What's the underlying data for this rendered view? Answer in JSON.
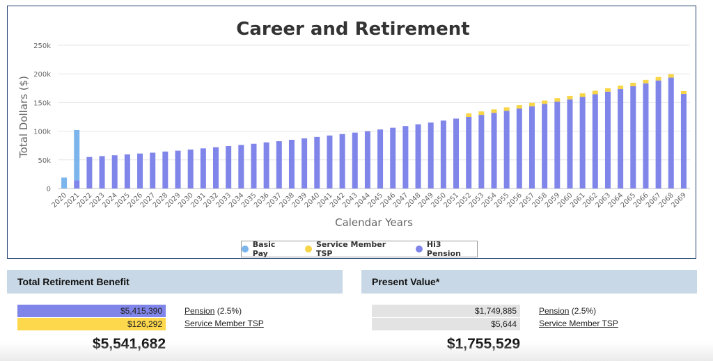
{
  "chart_data": {
    "type": "bar",
    "stacked": true,
    "title": "Career and Retirement",
    "xlabel": "Calendar Years",
    "ylabel": "Total Dollars ($)",
    "ylim": [
      0,
      250000
    ],
    "yticks": [
      "0",
      "50k",
      "100k",
      "150k",
      "200k",
      "250k"
    ],
    "grid": true,
    "legend_position": "bottom-center",
    "categories": [
      "2020",
      "2021",
      "2022",
      "2023",
      "2024",
      "2025",
      "2026",
      "2027",
      "2028",
      "2029",
      "2030",
      "2031",
      "2032",
      "2033",
      "2034",
      "2035",
      "2036",
      "2037",
      "2038",
      "2039",
      "2040",
      "2041",
      "2042",
      "2043",
      "2044",
      "2045",
      "2046",
      "2047",
      "2048",
      "2049",
      "2050",
      "2051",
      "2052",
      "2053",
      "2054",
      "2055",
      "2056",
      "2057",
      "2058",
      "2059",
      "2060",
      "2061",
      "2062",
      "2063",
      "2064",
      "2065",
      "2066",
      "2067",
      "2068",
      "2069"
    ],
    "series": [
      {
        "name": "Basic Pay",
        "color": "#7cb5ec",
        "values": [
          19000,
          88000,
          0,
          0,
          0,
          0,
          0,
          0,
          0,
          0,
          0,
          0,
          0,
          0,
          0,
          0,
          0,
          0,
          0,
          0,
          0,
          0,
          0,
          0,
          0,
          0,
          0,
          0,
          0,
          0,
          0,
          0,
          0,
          0,
          0,
          0,
          0,
          0,
          0,
          0,
          0,
          0,
          0,
          0,
          0,
          0,
          0,
          0,
          0,
          0
        ]
      },
      {
        "name": "Hi3 Pension",
        "color": "#8085e9",
        "values": [
          0,
          14000,
          55000,
          56500,
          58000,
          59500,
          61000,
          62500,
          64500,
          66000,
          68000,
          70000,
          72000,
          74000,
          76000,
          78000,
          80500,
          82500,
          85000,
          87500,
          90000,
          92500,
          95000,
          97500,
          100000,
          103000,
          106000,
          109000,
          112000,
          115000,
          118500,
          122000,
          125000,
          128500,
          132000,
          135500,
          139500,
          143500,
          147500,
          151500,
          155500,
          160000,
          164500,
          169000,
          173500,
          178500,
          183500,
          188500,
          193500,
          165000
        ]
      },
      {
        "name": "Service Member TSP",
        "color": "#f7d547",
        "values": [
          0,
          0,
          0,
          0,
          0,
          0,
          0,
          0,
          0,
          0,
          0,
          0,
          0,
          0,
          0,
          0,
          0,
          0,
          0,
          0,
          0,
          0,
          0,
          0,
          0,
          0,
          0,
          0,
          0,
          0,
          0,
          0,
          6000,
          6000,
          6000,
          6000,
          6000,
          6000,
          6000,
          6000,
          6000,
          6000,
          6000,
          6000,
          6000,
          6000,
          6000,
          6000,
          6000,
          5000
        ]
      }
    ],
    "legend_order": [
      "Basic Pay",
      "Service Member TSP",
      "Hi3 Pension"
    ]
  },
  "total_benefit": {
    "header": "Total Retirement Benefit",
    "pension_value": "$5,415,390",
    "pension_label": "Pension",
    "pension_rate": "(2.5%)",
    "tsp_value": "$126,292",
    "tsp_label": "Service Member TSP",
    "total": "$5,541,682",
    "pension_color": "#8085e9",
    "tsp_color": "#fdd84c"
  },
  "present_value": {
    "header": "Present Value*",
    "pension_value": "$1,749,885",
    "pension_label": "Pension",
    "pension_rate": "(2.5%)",
    "tsp_value": "$5,644",
    "tsp_label": "Service Member TSP",
    "total": "$1,755,529",
    "bar_color": "#e3e3e3"
  }
}
